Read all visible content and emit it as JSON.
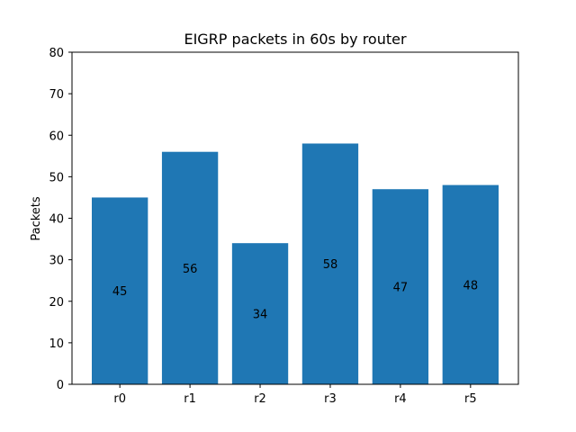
{
  "chart_data": {
    "type": "bar",
    "title": "EIGRP packets in 60s by router",
    "xlabel": "",
    "ylabel": "Packets",
    "categories": [
      "r0",
      "r1",
      "r2",
      "r3",
      "r4",
      "r5"
    ],
    "values": [
      45,
      56,
      34,
      58,
      47,
      48
    ],
    "data_labels": [
      "45",
      "56",
      "34",
      "58",
      "47",
      "48"
    ],
    "ylim": [
      0,
      80
    ],
    "yticks": [
      0,
      10,
      20,
      30,
      40,
      50,
      60,
      70,
      80
    ],
    "ytick_labels": [
      "0",
      "10",
      "20",
      "30",
      "40",
      "50",
      "60",
      "70",
      "80"
    ],
    "bar_color": "#1f77b4",
    "grid": false,
    "legend": "none"
  }
}
